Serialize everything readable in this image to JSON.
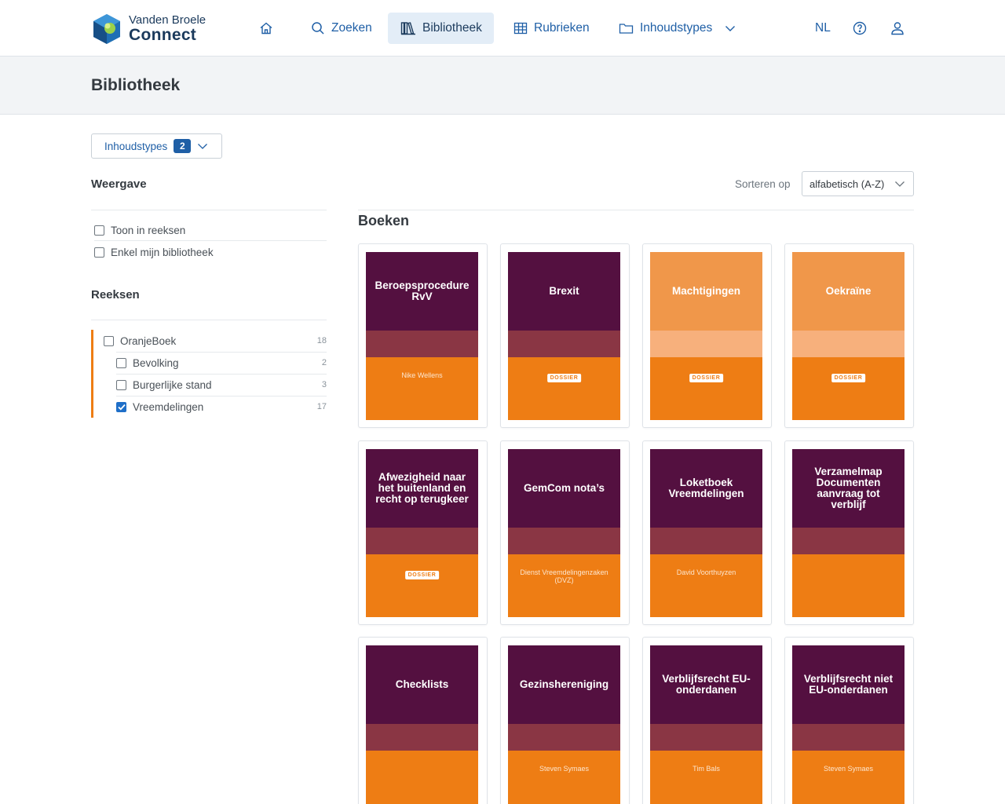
{
  "brand": {
    "line1": "Vanden Broele",
    "line2": "Connect"
  },
  "nav": {
    "home_icon": "home-icon",
    "search_label": "Zoeken",
    "library_label": "Bibliotheek",
    "sections_label": "Rubrieken",
    "types_label": "Inhoudstypes",
    "language": "NL",
    "help_icon": "help-icon",
    "user_icon": "user-icon"
  },
  "page": {
    "title": "Bibliotheek"
  },
  "filter": {
    "label": "Inhoudstypes",
    "count": "2"
  },
  "display": {
    "heading": "Weergave",
    "options": [
      {
        "label": "Toon in reeksen",
        "checked": false
      },
      {
        "label": "Enkel mijn bibliotheek",
        "checked": false
      }
    ]
  },
  "series": {
    "heading": "Reeksen",
    "items": [
      {
        "label": "OranjeBoek",
        "count": "18",
        "checked": false
      },
      {
        "label": "Bevolking",
        "count": "2",
        "checked": false
      },
      {
        "label": "Burgerlijke stand",
        "count": "3",
        "checked": false
      },
      {
        "label": "Vreemdelingen",
        "count": "17",
        "checked": true
      }
    ]
  },
  "sort": {
    "label": "Sorteren op",
    "value": "alfabetisch (A-Z)"
  },
  "books": {
    "heading": "Boeken",
    "items": [
      {
        "title": "Beroepsprocedure RvV",
        "author": "Nike Wellens",
        "tag": ""
      },
      {
        "title": "Brexit",
        "author": "",
        "tag": "DOSSIER"
      },
      {
        "title": "Machtigingen",
        "author": "",
        "tag": "DOSSIER"
      },
      {
        "title": "Oekraïne",
        "author": "",
        "tag": "DOSSIER"
      },
      {
        "title": "Afwezigheid naar het buitenland en recht op terugkeer",
        "author": "",
        "tag": "DOSSIER"
      },
      {
        "title": "GemCom nota’s",
        "author": "Dienst Vreemdelingenzaken (DVZ)",
        "tag": ""
      },
      {
        "title": "Loketboek Vreemdelingen",
        "author": "David Voorthuyzen",
        "tag": ""
      },
      {
        "title": "Verzamelmap Documenten aanvraag tot verblijf",
        "author": "",
        "tag": ""
      },
      {
        "title": "Checklists",
        "author": "",
        "tag": ""
      },
      {
        "title": "Gezinshereniging",
        "author": "Steven Symaes",
        "tag": ""
      },
      {
        "title": "Verblijfsrecht EU-onderdanen",
        "author": "Tim Bals",
        "tag": ""
      },
      {
        "title": "Verblijfsrecht niet EU-onderdanen",
        "author": "Steven Symaes",
        "tag": ""
      }
    ]
  }
}
